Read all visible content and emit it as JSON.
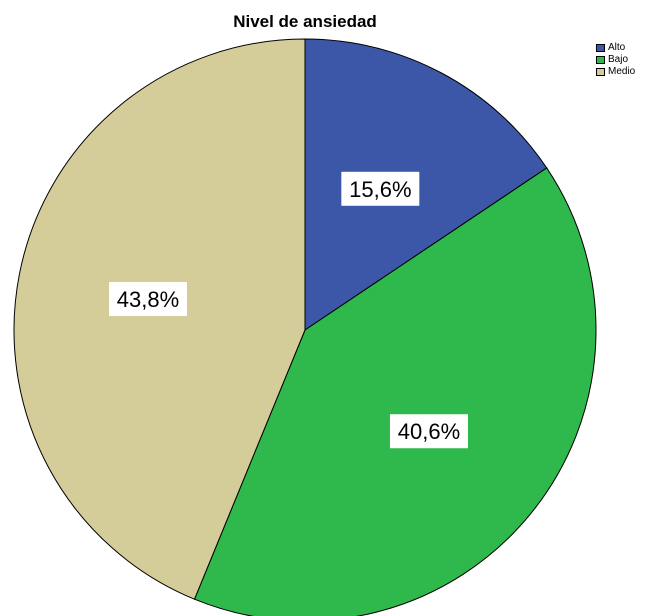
{
  "chart_data": {
    "type": "pie",
    "title": "Nivel de ansiedad",
    "categories": [
      "Alto",
      "Bajo",
      "Medio"
    ],
    "values": [
      15.6,
      40.6,
      43.8
    ],
    "labels": [
      "15,6%",
      "40,6%",
      "43,8%"
    ],
    "colors": [
      "#3c56a8",
      "#2fb84b",
      "#d4cd9a"
    ],
    "legend": "top-right",
    "start_angle": "12 o'clock",
    "direction": "clockwise"
  },
  "legend": {
    "items": [
      {
        "label": "Alto",
        "color": "#3c56a8"
      },
      {
        "label": "Bajo",
        "color": "#2fb84b"
      },
      {
        "label": "Medio",
        "color": "#d4cd9a"
      }
    ]
  }
}
